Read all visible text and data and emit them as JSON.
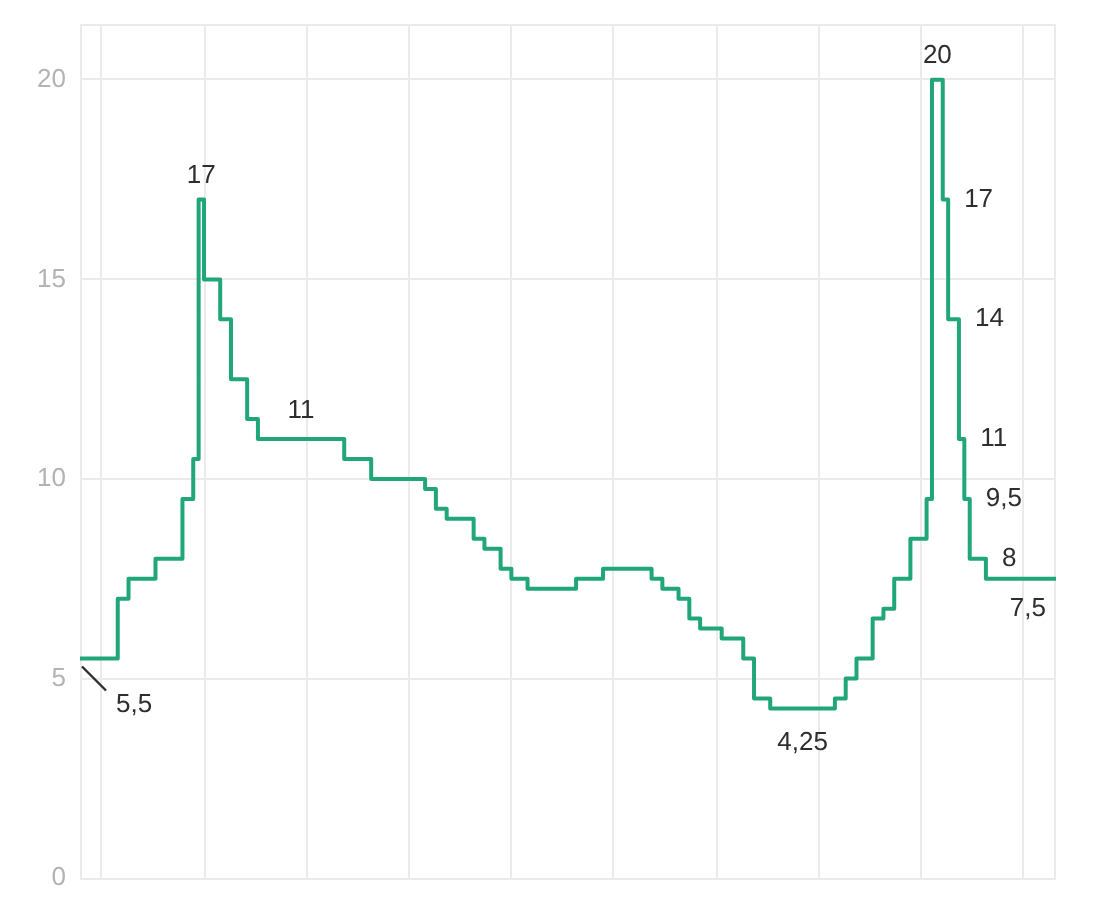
{
  "chart_data": {
    "type": "step",
    "categories": [
      null,
      null,
      null,
      null,
      null,
      null,
      null,
      null,
      null,
      null,
      null,
      null,
      null,
      null,
      null,
      null,
      null,
      null,
      null,
      null,
      null,
      null,
      null,
      null,
      null,
      null,
      null,
      null,
      null,
      null,
      null,
      null,
      null,
      null,
      null,
      null,
      null,
      null,
      null,
      null,
      null,
      null,
      null,
      null,
      null,
      null,
      null,
      null,
      null,
      null,
      null,
      null,
      null,
      null,
      null,
      null,
      null,
      null,
      null,
      null,
      null,
      null,
      null,
      null,
      null,
      null,
      null,
      null,
      null,
      null,
      null,
      null,
      null,
      null,
      null,
      null,
      null,
      null,
      null,
      null,
      null,
      null,
      null,
      null,
      null,
      null,
      null,
      null,
      null,
      null,
      null,
      null,
      null,
      null,
      null,
      null,
      null,
      null,
      null,
      null,
      null,
      null,
      null,
      null,
      null,
      null,
      null,
      null,
      null,
      null,
      null,
      null,
      null,
      null,
      null,
      null,
      null,
      null,
      null,
      null,
      null,
      null,
      null,
      null,
      null,
      null,
      null,
      null,
      null,
      null,
      null,
      null,
      null,
      null,
      null,
      null,
      null,
      null,
      null,
      null,
      null,
      null,
      null,
      null,
      null,
      null,
      null,
      null,
      null,
      null,
      null,
      null,
      null,
      null,
      null,
      null,
      null,
      null,
      null,
      null,
      null,
      null,
      null,
      null,
      null,
      null,
      null,
      null,
      null,
      null,
      null,
      null,
      null,
      null,
      null,
      null,
      null,
      null,
      null,
      null,
      null,
      null
    ],
    "values": [
      5.5,
      5.5,
      5.5,
      5.5,
      5.5,
      5.5,
      5.5,
      7,
      7,
      7.5,
      7.5,
      7.5,
      7.5,
      7.5,
      8,
      8,
      8,
      8,
      8,
      9.5,
      9.5,
      10.5,
      17,
      15,
      15,
      15,
      14,
      14,
      12.5,
      12.5,
      12.5,
      11.5,
      11.5,
      11,
      11,
      11,
      11,
      11,
      11,
      11,
      11,
      11,
      11,
      11,
      11,
      11,
      11,
      11,
      11,
      10.5,
      10.5,
      10.5,
      10.5,
      10.5,
      10,
      10,
      10,
      10,
      10,
      10,
      10,
      10,
      10,
      10,
      9.75,
      9.75,
      9.25,
      9.25,
      9,
      9,
      9,
      9,
      9,
      8.5,
      8.5,
      8.25,
      8.25,
      8.25,
      7.75,
      7.75,
      7.5,
      7.5,
      7.5,
      7.25,
      7.25,
      7.25,
      7.25,
      7.25,
      7.25,
      7.25,
      7.25,
      7.25,
      7.5,
      7.5,
      7.5,
      7.5,
      7.5,
      7.75,
      7.75,
      7.75,
      7.75,
      7.75,
      7.75,
      7.75,
      7.75,
      7.75,
      7.5,
      7.5,
      7.25,
      7.25,
      7.25,
      7,
      7,
      6.5,
      6.5,
      6.25,
      6.25,
      6.25,
      6.25,
      6,
      6,
      6,
      6,
      5.5,
      5.5,
      4.5,
      4.5,
      4.5,
      4.25,
      4.25,
      4.25,
      4.25,
      4.25,
      4.25,
      4.25,
      4.25,
      4.25,
      4.25,
      4.25,
      4.25,
      4.5,
      4.5,
      5,
      5,
      5.5,
      5.5,
      5.5,
      6.5,
      6.5,
      6.75,
      6.75,
      7.5,
      7.5,
      7.5,
      8.5,
      8.5,
      8.5,
      9.5,
      20,
      20,
      17,
      14,
      14,
      11,
      9.5,
      8,
      8,
      8,
      7.5,
      7.5,
      7.5,
      7.5,
      7.5,
      7.5,
      7.5,
      7.5,
      7.5,
      7.5,
      7.5,
      7.5,
      7.5,
      7.5
    ],
    "value_labels": [
      "5,5",
      null,
      null,
      null,
      null,
      null,
      null,
      null,
      null,
      null,
      null,
      null,
      null,
      null,
      null,
      null,
      null,
      null,
      null,
      null,
      null,
      null,
      "17",
      null,
      null,
      null,
      null,
      null,
      null,
      null,
      null,
      null,
      null,
      null,
      null,
      null,
      null,
      null,
      null,
      null,
      null,
      "11",
      null,
      null,
      null,
      null,
      null,
      null,
      null,
      null,
      null,
      null,
      null,
      null,
      null,
      null,
      null,
      null,
      null,
      null,
      null,
      null,
      null,
      null,
      null,
      null,
      null,
      null,
      null,
      null,
      null,
      null,
      null,
      null,
      null,
      null,
      null,
      null,
      null,
      null,
      null,
      null,
      null,
      null,
      null,
      null,
      null,
      null,
      null,
      null,
      null,
      null,
      null,
      null,
      null,
      null,
      null,
      null,
      null,
      null,
      null,
      null,
      null,
      null,
      null,
      null,
      null,
      null,
      null,
      null,
      null,
      null,
      null,
      null,
      null,
      null,
      null,
      null,
      null,
      null,
      null,
      null,
      null,
      null,
      null,
      null,
      null,
      null,
      null,
      null,
      null,
      null,
      null,
      null,
      "4,25",
      null,
      null,
      null,
      null,
      null,
      null,
      null,
      null,
      null,
      null,
      null,
      null,
      null,
      null,
      null,
      null,
      null,
      null,
      null,
      null,
      null,
      null,
      null,
      null,
      "20",
      "17",
      "14",
      null,
      "11",
      "9,5",
      "8",
      null,
      null,
      null,
      null,
      null,
      null,
      null,
      null,
      null,
      null,
      null,
      null,
      null,
      null,
      null,
      "7,5"
    ],
    "color": "#21a67a",
    "ylim": [
      0,
      21.4
    ],
    "yticks": [
      0,
      5,
      10,
      15,
      20
    ],
    "grid": true,
    "tick_labels": "y"
  }
}
